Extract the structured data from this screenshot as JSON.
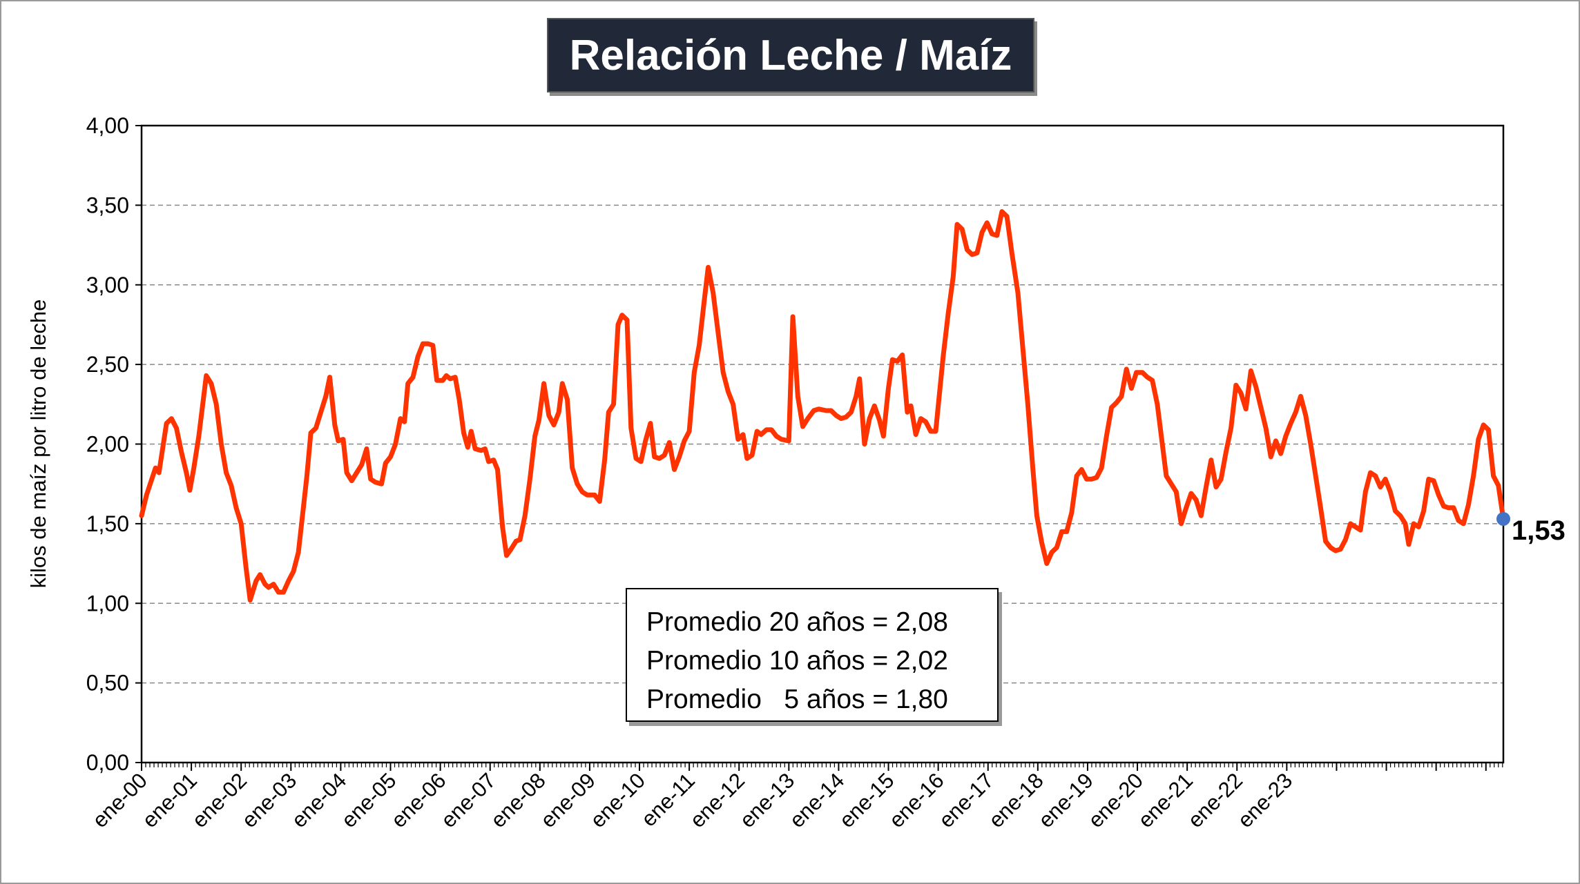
{
  "chart_data": {
    "type": "line",
    "title": "Relación Leche / Maíz",
    "ylabel": "kilos de maíz por litro de leche",
    "xlabel": "",
    "ylim": [
      0,
      4
    ],
    "y_ticks": [
      "0,00",
      "0,50",
      "1,00",
      "1,50",
      "2,00",
      "2,50",
      "3,00",
      "3,50",
      "4,00"
    ],
    "x_ticks": [
      "ene-00",
      "ene-01",
      "ene-02",
      "ene-03",
      "ene-04",
      "ene-05",
      "ene-06",
      "ene-07",
      "ene-08",
      "ene-09",
      "ene-10",
      "ene-11",
      "ene-12",
      "ene-13",
      "ene-14",
      "ene-15",
      "ene-16",
      "ene-17",
      "ene-18",
      "ene-19",
      "ene-20",
      "ene-21",
      "ene-22",
      "ene-23"
    ],
    "grid": "horizontal dashed",
    "line_color": "#ff3300",
    "marker_color": "#4472c4",
    "last_value_label": "1,53",
    "series": [
      {
        "points": [
          [
            0,
            1.55
          ],
          [
            0.1,
            1.68
          ],
          [
            0.28,
            1.85
          ],
          [
            0.35,
            1.82
          ],
          [
            0.5,
            2.13
          ],
          [
            0.6,
            2.16
          ],
          [
            0.7,
            2.1
          ],
          [
            0.8,
            1.95
          ],
          [
            0.9,
            1.82
          ],
          [
            0.97,
            1.71
          ],
          [
            1.05,
            1.85
          ],
          [
            1.15,
            2.05
          ],
          [
            1.3,
            2.43
          ],
          [
            1.4,
            2.38
          ],
          [
            1.5,
            2.25
          ],
          [
            1.6,
            2.0
          ],
          [
            1.7,
            1.82
          ],
          [
            1.8,
            1.74
          ],
          [
            1.9,
            1.6
          ],
          [
            2.0,
            1.5
          ],
          [
            2.1,
            1.22
          ],
          [
            2.18,
            1.02
          ],
          [
            2.3,
            1.14
          ],
          [
            2.38,
            1.18
          ],
          [
            2.48,
            1.12
          ],
          [
            2.55,
            1.1
          ],
          [
            2.65,
            1.12
          ],
          [
            2.75,
            1.07
          ],
          [
            2.85,
            1.07
          ],
          [
            2.95,
            1.14
          ],
          [
            3.05,
            1.2
          ],
          [
            3.15,
            1.32
          ],
          [
            3.25,
            1.6
          ],
          [
            3.32,
            1.8
          ],
          [
            3.4,
            2.07
          ],
          [
            3.5,
            2.1
          ],
          [
            3.6,
            2.2
          ],
          [
            3.7,
            2.3
          ],
          [
            3.78,
            2.42
          ],
          [
            3.88,
            2.12
          ],
          [
            3.95,
            2.02
          ],
          [
            4.05,
            2.03
          ],
          [
            4.12,
            1.82
          ],
          [
            4.22,
            1.77
          ],
          [
            4.32,
            1.82
          ],
          [
            4.42,
            1.87
          ],
          [
            4.52,
            1.97
          ],
          [
            4.6,
            1.78
          ],
          [
            4.7,
            1.76
          ],
          [
            4.82,
            1.75
          ],
          [
            4.9,
            1.88
          ],
          [
            5.0,
            1.92
          ],
          [
            5.1,
            2.0
          ],
          [
            5.2,
            2.16
          ],
          [
            5.28,
            2.14
          ],
          [
            5.35,
            2.38
          ],
          [
            5.45,
            2.42
          ],
          [
            5.55,
            2.55
          ],
          [
            5.65,
            2.63
          ],
          [
            5.75,
            2.63
          ],
          [
            5.85,
            2.62
          ],
          [
            5.93,
            2.4
          ],
          [
            6.05,
            2.4
          ],
          [
            6.12,
            2.43
          ],
          [
            6.2,
            2.41
          ],
          [
            6.3,
            2.42
          ],
          [
            6.38,
            2.28
          ],
          [
            6.47,
            2.07
          ],
          [
            6.55,
            1.98
          ],
          [
            6.62,
            2.08
          ],
          [
            6.7,
            1.97
          ],
          [
            6.82,
            1.96
          ],
          [
            6.9,
            1.97
          ],
          [
            6.97,
            1.89
          ],
          [
            7.07,
            1.9
          ],
          [
            7.15,
            1.84
          ],
          [
            7.25,
            1.48
          ],
          [
            7.33,
            1.3
          ],
          [
            7.42,
            1.34
          ],
          [
            7.52,
            1.39
          ],
          [
            7.6,
            1.4
          ],
          [
            7.7,
            1.55
          ],
          [
            7.8,
            1.78
          ],
          [
            7.9,
            2.05
          ],
          [
            7.98,
            2.15
          ],
          [
            8.08,
            2.38
          ],
          [
            8.18,
            2.18
          ],
          [
            8.28,
            2.12
          ],
          [
            8.38,
            2.2
          ],
          [
            8.45,
            2.38
          ],
          [
            8.55,
            2.28
          ],
          [
            8.65,
            1.85
          ],
          [
            8.75,
            1.75
          ],
          [
            8.85,
            1.7
          ],
          [
            8.95,
            1.68
          ],
          [
            9.1,
            1.68
          ],
          [
            9.2,
            1.64
          ],
          [
            9.3,
            1.9
          ],
          [
            9.38,
            2.2
          ],
          [
            9.48,
            2.25
          ],
          [
            9.57,
            2.75
          ],
          [
            9.65,
            2.81
          ],
          [
            9.75,
            2.78
          ],
          [
            9.83,
            2.1
          ],
          [
            9.93,
            1.91
          ],
          [
            10.03,
            1.89
          ],
          [
            10.12,
            2.02
          ],
          [
            10.22,
            2.13
          ],
          [
            10.3,
            1.92
          ],
          [
            10.4,
            1.91
          ],
          [
            10.5,
            1.93
          ],
          [
            10.6,
            2.01
          ],
          [
            10.7,
            1.84
          ],
          [
            10.8,
            1.92
          ],
          [
            10.9,
            2.02
          ],
          [
            11.0,
            2.08
          ],
          [
            11.1,
            2.45
          ],
          [
            11.2,
            2.62
          ],
          [
            11.3,
            2.9
          ],
          [
            11.38,
            3.11
          ],
          [
            11.48,
            2.95
          ],
          [
            11.58,
            2.7
          ],
          [
            11.68,
            2.45
          ],
          [
            11.78,
            2.33
          ],
          [
            11.88,
            2.25
          ],
          [
            11.98,
            2.03
          ],
          [
            12.08,
            2.06
          ],
          [
            12.16,
            1.91
          ],
          [
            12.26,
            1.93
          ],
          [
            12.36,
            2.08
          ],
          [
            12.44,
            2.06
          ],
          [
            12.55,
            2.09
          ],
          [
            12.65,
            2.09
          ],
          [
            12.75,
            2.05
          ],
          [
            12.85,
            2.03
          ],
          [
            13.0,
            2.02
          ],
          [
            13.08,
            2.8
          ],
          [
            13.18,
            2.3
          ],
          [
            13.28,
            2.11
          ],
          [
            13.38,
            2.16
          ],
          [
            13.5,
            2.21
          ],
          [
            13.6,
            2.22
          ],
          [
            13.75,
            2.21
          ],
          [
            13.85,
            2.21
          ],
          [
            13.95,
            2.18
          ],
          [
            14.05,
            2.16
          ],
          [
            14.15,
            2.17
          ],
          [
            14.25,
            2.2
          ],
          [
            14.35,
            2.3
          ],
          [
            14.42,
            2.41
          ],
          [
            14.52,
            2.0
          ],
          [
            14.62,
            2.16
          ],
          [
            14.72,
            2.24
          ],
          [
            14.82,
            2.15
          ],
          [
            14.9,
            2.05
          ],
          [
            15.0,
            2.35
          ],
          [
            15.08,
            2.53
          ],
          [
            15.18,
            2.52
          ],
          [
            15.28,
            2.56
          ],
          [
            15.38,
            2.2
          ],
          [
            15.45,
            2.24
          ],
          [
            15.55,
            2.06
          ],
          [
            15.65,
            2.16
          ],
          [
            15.75,
            2.14
          ],
          [
            15.85,
            2.08
          ],
          [
            15.95,
            2.08
          ],
          [
            16.1,
            2.55
          ],
          [
            16.2,
            2.82
          ],
          [
            16.3,
            3.05
          ],
          [
            16.38,
            3.38
          ],
          [
            16.48,
            3.35
          ],
          [
            16.58,
            3.22
          ],
          [
            16.68,
            3.19
          ],
          [
            16.78,
            3.2
          ],
          [
            16.88,
            3.33
          ],
          [
            16.98,
            3.39
          ],
          [
            17.08,
            3.32
          ],
          [
            17.18,
            3.31
          ],
          [
            17.28,
            3.46
          ],
          [
            17.38,
            3.43
          ],
          [
            17.48,
            3.2
          ],
          [
            17.6,
            2.95
          ],
          [
            17.7,
            2.6
          ],
          [
            17.8,
            2.25
          ],
          [
            17.9,
            1.85
          ],
          [
            17.98,
            1.55
          ],
          [
            18.08,
            1.38
          ],
          [
            18.18,
            1.25
          ],
          [
            18.28,
            1.32
          ],
          [
            18.38,
            1.35
          ],
          [
            18.48,
            1.45
          ],
          [
            18.58,
            1.45
          ],
          [
            18.68,
            1.57
          ],
          [
            18.78,
            1.8
          ],
          [
            18.88,
            1.84
          ],
          [
            18.98,
            1.78
          ],
          [
            19.08,
            1.78
          ],
          [
            19.18,
            1.79
          ],
          [
            19.28,
            1.85
          ],
          [
            19.38,
            2.05
          ],
          [
            19.48,
            2.23
          ],
          [
            19.58,
            2.26
          ],
          [
            19.68,
            2.3
          ],
          [
            19.78,
            2.47
          ],
          [
            19.88,
            2.35
          ],
          [
            19.98,
            2.45
          ],
          [
            20.1,
            2.45
          ],
          [
            20.2,
            2.42
          ],
          [
            20.3,
            2.4
          ],
          [
            20.4,
            2.25
          ],
          [
            20.48,
            2.05
          ],
          [
            20.58,
            1.8
          ],
          [
            20.68,
            1.75
          ],
          [
            20.78,
            1.7
          ],
          [
            20.88,
            1.5
          ],
          [
            20.98,
            1.6
          ],
          [
            21.08,
            1.69
          ],
          [
            21.18,
            1.65
          ],
          [
            21.28,
            1.55
          ],
          [
            21.38,
            1.73
          ],
          [
            21.48,
            1.9
          ],
          [
            21.58,
            1.73
          ],
          [
            21.68,
            1.78
          ],
          [
            21.78,
            1.95
          ],
          [
            21.88,
            2.1
          ],
          [
            21.98,
            2.37
          ],
          [
            22.08,
            2.32
          ],
          [
            22.18,
            2.22
          ],
          [
            22.28,
            2.46
          ],
          [
            22.38,
            2.36
          ],
          [
            22.48,
            2.23
          ],
          [
            22.58,
            2.1
          ],
          [
            22.68,
            1.92
          ],
          [
            22.78,
            2.02
          ],
          [
            22.88,
            1.94
          ],
          [
            22.98,
            2.05
          ],
          [
            23.08,
            2.13
          ],
          [
            23.18,
            2.2
          ],
          [
            23.28,
            2.3
          ],
          [
            23.38,
            2.18
          ],
          [
            23.48,
            2.0
          ],
          [
            23.58,
            1.8
          ],
          [
            23.68,
            1.6
          ],
          [
            23.78,
            1.39
          ],
          [
            23.88,
            1.35
          ],
          [
            23.98,
            1.33
          ],
          [
            24.08,
            1.34
          ],
          [
            24.18,
            1.4
          ],
          [
            24.28,
            1.5
          ],
          [
            24.38,
            1.48
          ],
          [
            24.48,
            1.46
          ],
          [
            24.58,
            1.7
          ],
          [
            24.68,
            1.82
          ],
          [
            24.78,
            1.8
          ],
          [
            24.88,
            1.73
          ],
          [
            24.98,
            1.78
          ],
          [
            25.08,
            1.7
          ],
          [
            25.18,
            1.58
          ],
          [
            25.28,
            1.55
          ],
          [
            25.38,
            1.5
          ],
          [
            25.45,
            1.37
          ],
          [
            25.55,
            1.5
          ],
          [
            25.65,
            1.48
          ],
          [
            25.75,
            1.58
          ],
          [
            25.85,
            1.78
          ],
          [
            25.95,
            1.77
          ],
          [
            26.05,
            1.68
          ],
          [
            26.15,
            1.61
          ],
          [
            26.25,
            1.6
          ],
          [
            26.35,
            1.6
          ],
          [
            26.45,
            1.52
          ],
          [
            26.55,
            1.5
          ],
          [
            26.65,
            1.62
          ],
          [
            26.75,
            1.8
          ],
          [
            26.85,
            2.03
          ],
          [
            26.95,
            2.12
          ],
          [
            27.05,
            2.09
          ],
          [
            27.15,
            1.8
          ],
          [
            27.25,
            1.74
          ],
          [
            27.35,
            1.53
          ]
        ]
      }
    ],
    "annotation": [
      "Promedio 20 años = 2,08",
      "Promedio 10 años = 2,02",
      "Promedio   5 años = 1,80"
    ]
  }
}
